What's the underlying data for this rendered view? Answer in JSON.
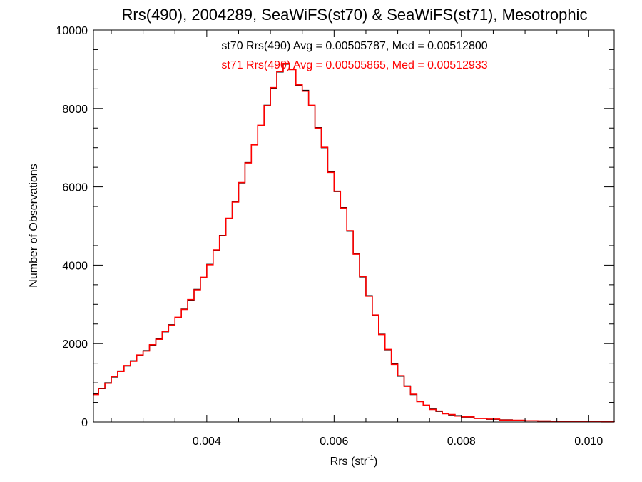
{
  "chart_data": {
    "type": "line",
    "step": true,
    "title": "Rrs(490), 2004289, SeaWiFS(st70) & SeaWiFS(st71), Mesotrophic",
    "xlabel": "Rrs (str",
    "xlabel_sup": "-1",
    "xlabel_close": ")",
    "ylabel": "Number of Observations",
    "xlim": [
      0.00222,
      0.0104
    ],
    "ylim": [
      0,
      10000
    ],
    "xticks": [
      0.004,
      0.006,
      0.008,
      0.01
    ],
    "xtick_labels": [
      "0.004",
      "0.006",
      "0.008",
      "0.010"
    ],
    "yticks": [
      0,
      2000,
      4000,
      6000,
      8000,
      10000
    ],
    "ytick_labels": [
      "0",
      "2000",
      "4000",
      "6000",
      "8000",
      "10000"
    ],
    "grid": false,
    "annotations": [
      {
        "text": "st70 Rrs(490) Avg = 0.00505787, Med = 0.00512800",
        "color": "#000000"
      },
      {
        "text": "st71 Rrs(490) Avg = 0.00505865, Med = 0.00512933",
        "color": "#ff0000"
      }
    ],
    "series": [
      {
        "name": "st70",
        "color": "#000000",
        "x": [
          0.00222,
          0.0023,
          0.0024,
          0.0025,
          0.0026,
          0.0027,
          0.0028,
          0.0029,
          0.003,
          0.0031,
          0.0032,
          0.0033,
          0.0034,
          0.0035,
          0.0036,
          0.0037,
          0.0038,
          0.0039,
          0.004,
          0.0041,
          0.0042,
          0.0043,
          0.0044,
          0.0045,
          0.0046,
          0.0047,
          0.0048,
          0.0049,
          0.005,
          0.0051,
          0.0052,
          0.0053,
          0.0054,
          0.0055,
          0.0056,
          0.0057,
          0.0058,
          0.0059,
          0.006,
          0.0061,
          0.0062,
          0.0063,
          0.0064,
          0.0065,
          0.0066,
          0.0067,
          0.0068,
          0.0069,
          0.007,
          0.0071,
          0.0072,
          0.0073,
          0.0074,
          0.0075,
          0.0076,
          0.0077,
          0.0078,
          0.0079,
          0.008,
          0.0082,
          0.0084,
          0.0086,
          0.0088,
          0.009,
          0.0092,
          0.0094,
          0.0096,
          0.0098,
          0.01,
          0.0102,
          0.0104
        ],
        "y": [
          720,
          850,
          1000,
          1150,
          1300,
          1430,
          1560,
          1700,
          1820,
          1960,
          2120,
          2300,
          2480,
          2660,
          2880,
          3110,
          3380,
          3680,
          4020,
          4380,
          4760,
          5190,
          5620,
          6100,
          6620,
          7080,
          7560,
          8080,
          8520,
          8930,
          9130,
          9000,
          8580,
          8460,
          8070,
          7510,
          7000,
          6380,
          5880,
          5470,
          4870,
          4290,
          3700,
          3220,
          2720,
          2240,
          1840,
          1480,
          1170,
          920,
          700,
          530,
          420,
          330,
          270,
          220,
          180,
          160,
          125,
          95,
          70,
          55,
          42,
          32,
          25,
          20,
          15,
          10,
          6,
          4,
          2
        ]
      },
      {
        "name": "st71",
        "color": "#ff0000",
        "x": [
          0.00222,
          0.0023,
          0.0024,
          0.0025,
          0.0026,
          0.0027,
          0.0028,
          0.0029,
          0.003,
          0.0031,
          0.0032,
          0.0033,
          0.0034,
          0.0035,
          0.0036,
          0.0037,
          0.0038,
          0.0039,
          0.004,
          0.0041,
          0.0042,
          0.0043,
          0.0044,
          0.0045,
          0.0046,
          0.0047,
          0.0048,
          0.0049,
          0.005,
          0.0051,
          0.0052,
          0.0053,
          0.0054,
          0.0055,
          0.0056,
          0.0057,
          0.0058,
          0.0059,
          0.006,
          0.0061,
          0.0062,
          0.0063,
          0.0064,
          0.0065,
          0.0066,
          0.0067,
          0.0068,
          0.0069,
          0.007,
          0.0071,
          0.0072,
          0.0073,
          0.0074,
          0.0075,
          0.0076,
          0.0077,
          0.0078,
          0.0079,
          0.008,
          0.0082,
          0.0084,
          0.0086,
          0.0088,
          0.009,
          0.0092,
          0.0094,
          0.0096,
          0.0098,
          0.01,
          0.0102,
          0.0104
        ],
        "y": [
          700,
          860,
          990,
          1160,
          1290,
          1440,
          1550,
          1710,
          1810,
          1970,
          2110,
          2310,
          2470,
          2670,
          2870,
          3120,
          3370,
          3690,
          4010,
          4390,
          4750,
          5200,
          5610,
          6110,
          6610,
          7070,
          7570,
          8070,
          8530,
          8940,
          9150,
          8990,
          8600,
          8440,
          8080,
          7500,
          7010,
          6370,
          5890,
          5460,
          4880,
          4280,
          3710,
          3210,
          2730,
          2230,
          1850,
          1470,
          1180,
          910,
          710,
          520,
          430,
          320,
          280,
          210,
          190,
          150,
          130,
          90,
          75,
          50,
          45,
          30,
          27,
          18,
          16,
          9,
          7,
          3,
          2
        ]
      }
    ]
  }
}
